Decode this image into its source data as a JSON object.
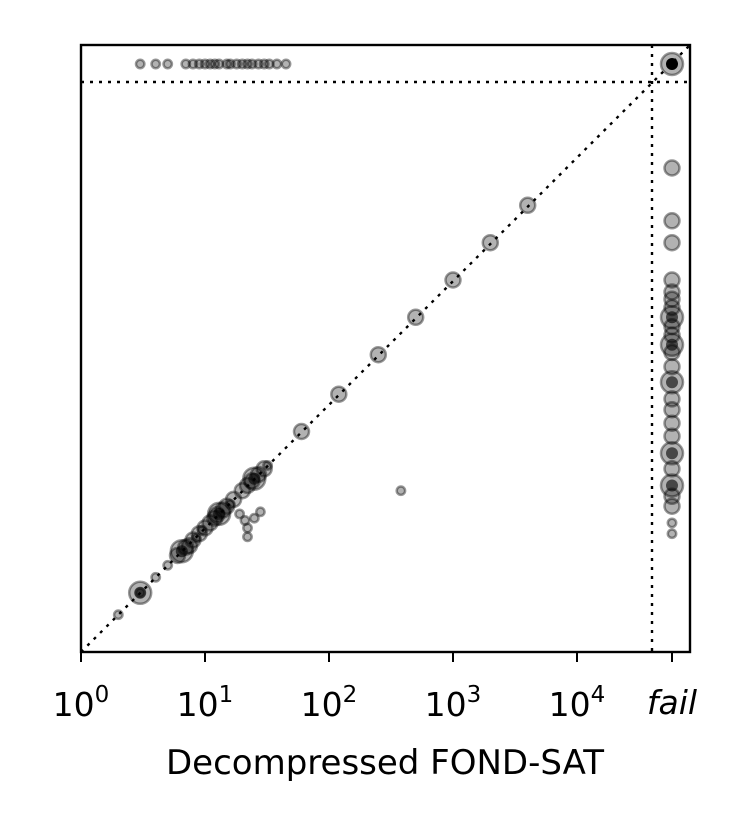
{
  "chart_data": {
    "type": "scatter",
    "title": "",
    "xlabel": "Decompressed FOND-SAT",
    "ylabel": "",
    "x_scale": "log10",
    "xlim": [
      1,
      25000
    ],
    "ylim": [
      1,
      25000
    ],
    "xticks": [
      {
        "value": 1,
        "base": "10",
        "exp": "0"
      },
      {
        "value": 10,
        "base": "10",
        "exp": "1"
      },
      {
        "value": 100,
        "base": "10",
        "exp": "2"
      },
      {
        "value": 1000,
        "base": "10",
        "exp": "3"
      },
      {
        "value": 10000,
        "base": "10",
        "exp": "4"
      }
    ],
    "fail_label": "fail",
    "yticks_shown": false,
    "reference_lines": [
      "y = x diagonal (dotted)",
      "fail threshold vertical (dotted)",
      "fail threshold horizontal (dotted)"
    ],
    "point_color": "#000000",
    "point_alpha": 0.3,
    "size_classes": {
      "1": "small",
      "2": "medium",
      "3": "large"
    },
    "series": [
      {
        "subset": "both_solved",
        "points": [
          [
            2,
            2,
            1
          ],
          [
            3,
            3,
            3
          ],
          [
            3,
            3,
            1
          ],
          [
            4,
            4,
            1
          ],
          [
            5,
            5,
            1
          ],
          [
            6,
            6,
            2
          ],
          [
            6.5,
            6.5,
            3
          ],
          [
            7,
            7,
            2
          ],
          [
            7.5,
            7.2,
            2
          ],
          [
            8,
            8,
            2
          ],
          [
            8.5,
            8.3,
            1
          ],
          [
            9,
            9,
            2
          ],
          [
            9.5,
            9.6,
            1
          ],
          [
            10,
            10,
            2
          ],
          [
            11,
            11,
            2
          ],
          [
            12,
            12,
            2
          ],
          [
            12.5,
            12.8,
            2
          ],
          [
            13,
            13,
            3
          ],
          [
            14,
            14,
            2
          ],
          [
            15,
            15,
            2
          ],
          [
            16,
            15.5,
            1
          ],
          [
            17,
            17,
            2
          ],
          [
            20,
            20,
            2
          ],
          [
            22,
            22,
            2
          ],
          [
            24,
            24,
            2
          ],
          [
            25,
            25,
            3
          ],
          [
            27,
            27,
            2
          ],
          [
            30,
            30,
            2
          ],
          [
            32,
            32,
            1
          ],
          [
            19,
            13,
            1
          ],
          [
            21,
            11.5,
            1
          ],
          [
            22,
            10,
            1
          ],
          [
            25,
            12,
            1
          ],
          [
            28,
            13.5,
            1
          ],
          [
            22,
            8.5,
            1
          ],
          [
            60,
            60,
            2
          ],
          [
            120,
            120,
            2
          ],
          [
            250,
            250,
            2
          ],
          [
            500,
            500,
            2
          ],
          [
            1000,
            1000,
            2
          ],
          [
            2000,
            2000,
            2
          ],
          [
            4000,
            4000,
            2
          ],
          [
            380,
            20,
            1
          ]
        ]
      },
      {
        "subset": "x_failed",
        "x": "fail",
        "points": [
          [
            "fail",
            9,
            1
          ],
          [
            "fail",
            11,
            1
          ],
          [
            "fail",
            15,
            2
          ],
          [
            "fail",
            18,
            2
          ],
          [
            "fail",
            22,
            3
          ],
          [
            "fail",
            30,
            2
          ],
          [
            "fail",
            40,
            3
          ],
          [
            "fail",
            55,
            2
          ],
          [
            "fail",
            70,
            2
          ],
          [
            "fail",
            90,
            2
          ],
          [
            "fail",
            110,
            2
          ],
          [
            "fail",
            150,
            3
          ],
          [
            "fail",
            200,
            2
          ],
          [
            "fail",
            260,
            2
          ],
          [
            "fail",
            300,
            3
          ],
          [
            "fail",
            360,
            2
          ],
          [
            "fail",
            420,
            2
          ],
          [
            "fail",
            500,
            3
          ],
          [
            "fail",
            600,
            2
          ],
          [
            "fail",
            700,
            2
          ],
          [
            "fail",
            800,
            2
          ],
          [
            "fail",
            1000,
            2
          ],
          [
            "fail",
            2000,
            2
          ],
          [
            "fail",
            3000,
            2
          ],
          [
            "fail",
            8000,
            2
          ]
        ]
      },
      {
        "subset": "y_failed",
        "y": "fail",
        "points": [
          [
            3,
            "fail",
            1
          ],
          [
            4,
            "fail",
            1
          ],
          [
            5,
            "fail",
            1
          ],
          [
            7,
            "fail",
            1
          ],
          [
            8,
            "fail",
            1
          ],
          [
            9,
            "fail",
            1
          ],
          [
            10,
            "fail",
            1
          ],
          [
            11,
            "fail",
            1
          ],
          [
            12,
            "fail",
            1
          ],
          [
            13,
            "fail",
            1
          ],
          [
            15,
            "fail",
            1
          ],
          [
            16,
            "fail",
            1
          ],
          [
            18,
            "fail",
            1
          ],
          [
            20,
            "fail",
            1
          ],
          [
            22,
            "fail",
            1
          ],
          [
            24,
            "fail",
            1
          ],
          [
            27,
            "fail",
            1
          ],
          [
            30,
            "fail",
            1
          ],
          [
            33,
            "fail",
            1
          ],
          [
            38,
            "fail",
            1
          ],
          [
            45,
            "fail",
            1
          ]
        ]
      },
      {
        "subset": "both_failed",
        "points": [
          [
            "fail",
            "fail",
            3
          ]
        ]
      }
    ]
  }
}
